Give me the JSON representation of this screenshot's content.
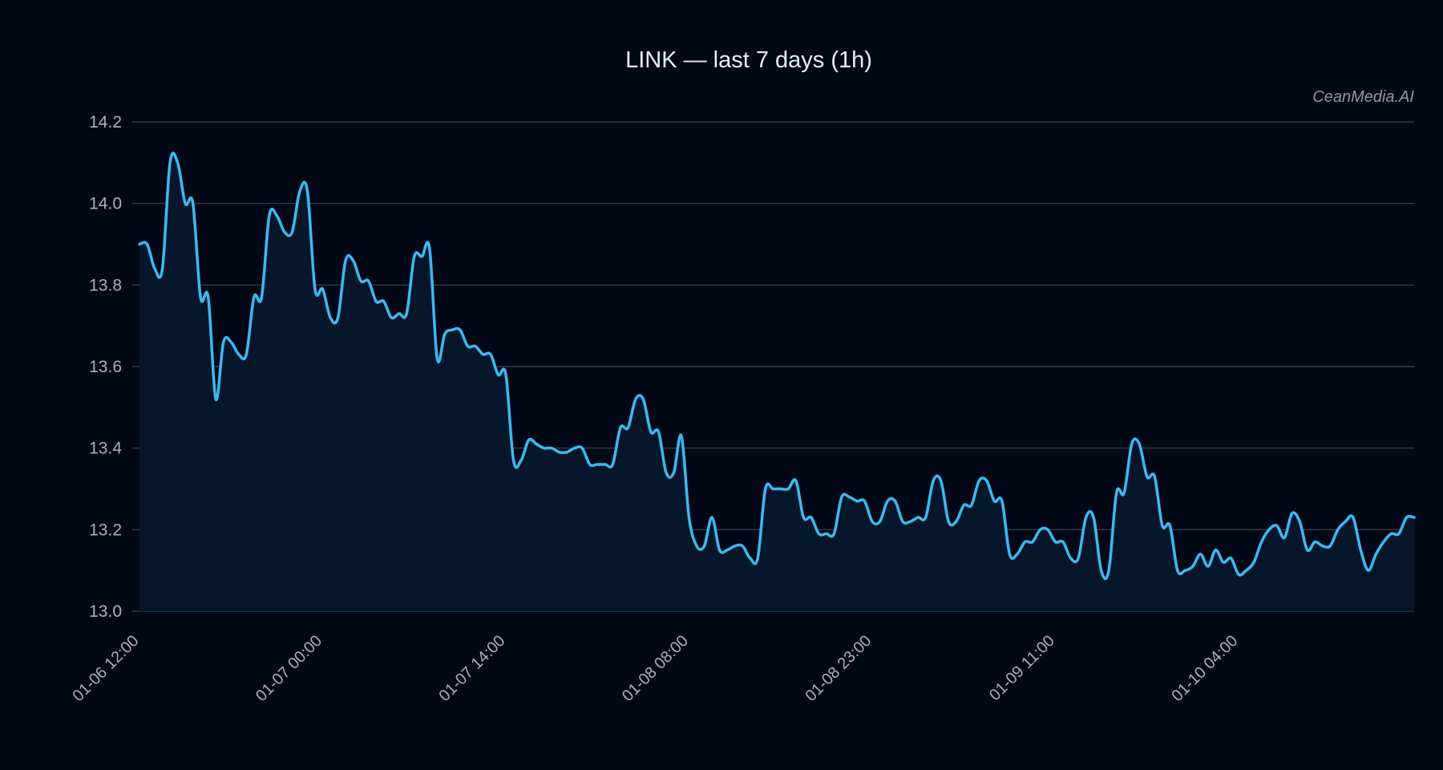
{
  "colors": {
    "background": "#030817",
    "line": "#3cb9f0",
    "area": "#07172b",
    "grid": "#3a4554",
    "tick_text": "#a9b1bd",
    "title_text": "#e9edf3",
    "watermark_text": "#8f98a7"
  },
  "watermark": "CeanMedia.AI",
  "chart_data": {
    "type": "area",
    "title": "LINK — last 7 days (1h)",
    "xlabel": "",
    "ylabel": "",
    "grid": true,
    "legend": "none",
    "ylim": [
      13.0,
      14.2
    ],
    "yticks": [
      13.0,
      13.2,
      13.4,
      13.6,
      13.8,
      14.0,
      14.2
    ],
    "ytick_labels": [
      "13.0",
      "13.2",
      "13.4",
      "13.6",
      "13.8",
      "14.0",
      "14.2"
    ],
    "xticks": [
      {
        "label": "01-06 12:00",
        "index": 0
      },
      {
        "label": "01-07 00:00",
        "index": 24
      },
      {
        "label": "01-07 14:00",
        "index": 48
      },
      {
        "label": "01-08 08:00",
        "index": 72
      },
      {
        "label": "01-08 23:00",
        "index": 96
      },
      {
        "label": "01-09 11:00",
        "index": 120
      },
      {
        "label": "01-10 04:00",
        "index": 144
      }
    ],
    "series": [
      {
        "values": [
          13.9,
          13.9,
          13.84,
          13.84,
          14.1,
          14.1,
          14.0,
          14.0,
          13.77,
          13.77,
          13.52,
          13.66,
          13.66,
          13.63,
          13.63,
          13.77,
          13.77,
          13.97,
          13.97,
          13.93,
          13.93,
          14.03,
          14.03,
          13.79,
          13.79,
          13.72,
          13.72,
          13.86,
          13.86,
          13.81,
          13.81,
          13.76,
          13.76,
          13.72,
          13.73,
          13.73,
          13.87,
          13.87,
          13.89,
          13.62,
          13.68,
          13.69,
          13.69,
          13.65,
          13.65,
          13.63,
          13.63,
          13.58,
          13.58,
          13.37,
          13.37,
          13.42,
          13.41,
          13.4,
          13.4,
          13.39,
          13.39,
          13.4,
          13.4,
          13.36,
          13.36,
          13.36,
          13.36,
          13.45,
          13.45,
          13.52,
          13.52,
          13.44,
          13.44,
          13.34,
          13.34,
          13.43,
          13.23,
          13.16,
          13.16,
          13.23,
          13.15,
          13.15,
          13.16,
          13.16,
          13.13,
          13.13,
          13.3,
          13.3,
          13.3,
          13.3,
          13.32,
          13.23,
          13.23,
          13.19,
          13.19,
          13.19,
          13.28,
          13.28,
          13.27,
          13.27,
          13.22,
          13.22,
          13.27,
          13.27,
          13.22,
          13.22,
          13.23,
          13.23,
          13.32,
          13.32,
          13.22,
          13.22,
          13.26,
          13.26,
          13.32,
          13.32,
          13.27,
          13.27,
          13.14,
          13.14,
          13.17,
          13.17,
          13.2,
          13.2,
          13.17,
          13.17,
          13.13,
          13.13,
          13.23,
          13.23,
          13.1,
          13.1,
          13.29,
          13.29,
          13.41,
          13.41,
          13.33,
          13.33,
          13.21,
          13.21,
          13.1,
          13.1,
          13.11,
          13.14,
          13.11,
          13.15,
          13.12,
          13.13,
          13.09,
          13.1,
          13.12,
          13.17,
          13.2,
          13.21,
          13.18,
          13.24,
          13.22,
          13.15,
          13.17,
          13.16,
          13.16,
          13.2,
          13.22,
          13.23,
          13.15,
          13.1,
          13.14,
          13.17,
          13.19,
          13.19,
          13.23,
          13.23
        ]
      }
    ]
  }
}
